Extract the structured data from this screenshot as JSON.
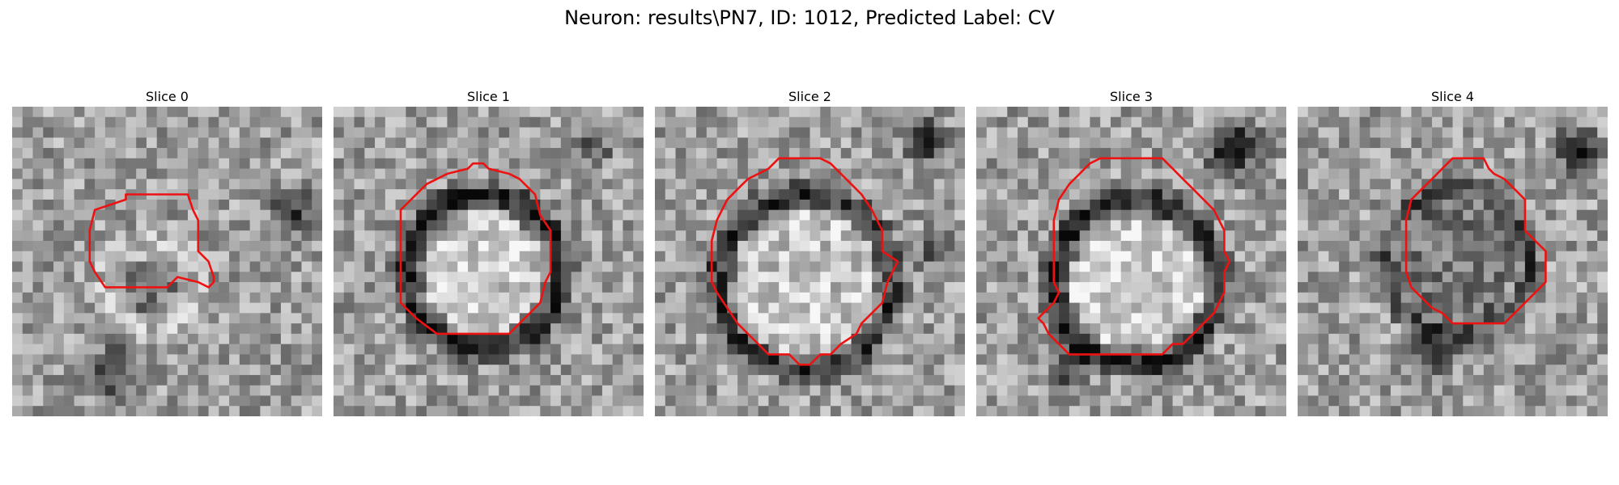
{
  "figure": {
    "title": "Neuron: results\\PN7, ID: 1012, Predicted Label: CV"
  },
  "panels": [
    {
      "title": "Slice 0"
    },
    {
      "title": "Slice 1"
    },
    {
      "title": "Slice 2"
    },
    {
      "title": "Slice 3"
    },
    {
      "title": "Slice 4"
    }
  ],
  "colors": {
    "contour": "#ee1111",
    "background": "#ffffff"
  }
}
